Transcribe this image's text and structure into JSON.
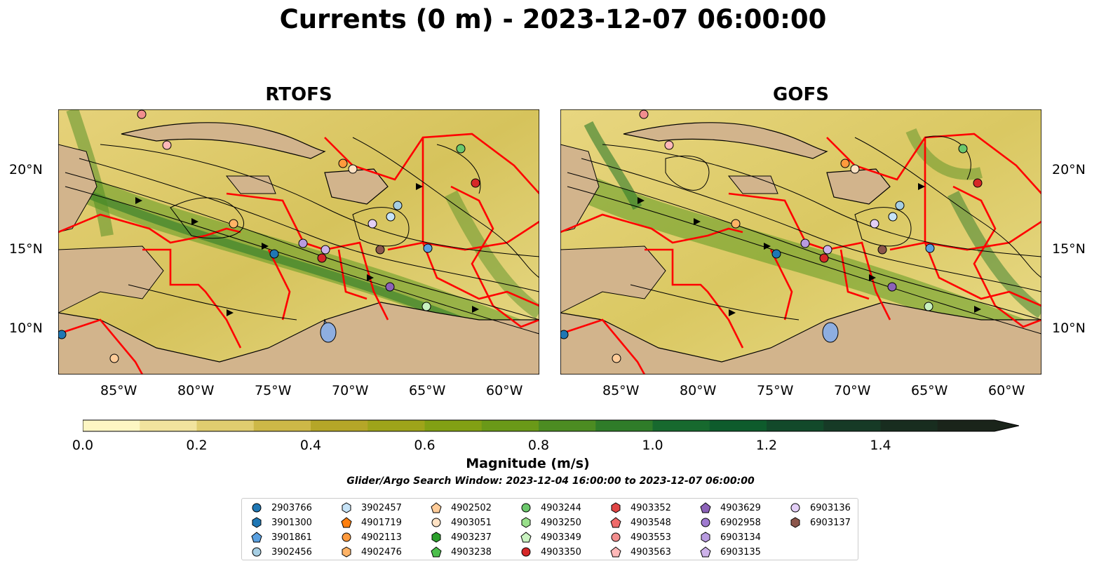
{
  "title": "Currents (0 m) - 2023-12-07 06:00:00",
  "panels": [
    {
      "title": "RTOFS"
    },
    {
      "title": "GOFS"
    }
  ],
  "axes": {
    "lat_ticks": [
      "20°N",
      "15°N",
      "10°N"
    ],
    "lon_ticks": [
      "85°W",
      "80°W",
      "75°W",
      "70°W",
      "65°W",
      "60°W"
    ]
  },
  "colorbar": {
    "label": "Magnitude (m/s)",
    "ticks": [
      "0.0",
      "0.2",
      "0.4",
      "0.6",
      "0.8",
      "1.0",
      "1.2",
      "1.4"
    ],
    "range": [
      0.0,
      1.6
    ],
    "colors": [
      "#fdf6c3",
      "#f1e39e",
      "#e0cd6f",
      "#cdb847",
      "#b5a628",
      "#9ea41a",
      "#82a014",
      "#6a9918",
      "#4c8c22",
      "#2f7c29",
      "#17692e",
      "#0e5b2c",
      "#12492a",
      "#163a26",
      "#182d1f",
      "#1a241a"
    ],
    "extend": "max"
  },
  "search_window": "Glider/Argo Search Window: 2023-12-04 16:00:00 to 2023-12-07 06:00:00",
  "legend": [
    {
      "id": "2903766",
      "marker": "circle",
      "color": "#1f77b4"
    },
    {
      "id": "3901300",
      "marker": "hexagon",
      "color": "#1f77b4"
    },
    {
      "id": "3901861",
      "marker": "pentagon",
      "color": "#5aa0e0"
    },
    {
      "id": "3902456",
      "marker": "circle",
      "color": "#a6cee3"
    },
    {
      "id": "3902457",
      "marker": "hexagon",
      "color": "#c6e3f7"
    },
    {
      "id": "4901719",
      "marker": "pentagon",
      "color": "#ff7f0e"
    },
    {
      "id": "4902113",
      "marker": "circle",
      "color": "#ff9a3d"
    },
    {
      "id": "4902476",
      "marker": "hexagon",
      "color": "#ffb366"
    },
    {
      "id": "4902502",
      "marker": "pentagon",
      "color": "#ffcc99"
    },
    {
      "id": "4903051",
      "marker": "circle",
      "color": "#ffe2c4"
    },
    {
      "id": "4903237",
      "marker": "hexagon",
      "color": "#2ca02c"
    },
    {
      "id": "4903238",
      "marker": "pentagon",
      "color": "#4cbf4c"
    },
    {
      "id": "4903244",
      "marker": "circle",
      "color": "#6cc86c"
    },
    {
      "id": "4903250",
      "marker": "hexagon",
      "color": "#98df8a"
    },
    {
      "id": "4903349",
      "marker": "pentagon",
      "color": "#c9f2c0"
    },
    {
      "id": "4903350",
      "marker": "circle",
      "color": "#d62728"
    },
    {
      "id": "4903352",
      "marker": "hexagon",
      "color": "#e04545"
    },
    {
      "id": "4903548",
      "marker": "pentagon",
      "color": "#ee6a6a"
    },
    {
      "id": "4903553",
      "marker": "circle",
      "color": "#f28e8e"
    },
    {
      "id": "4903563",
      "marker": "pentagon",
      "color": "#ffb8b8"
    },
    {
      "id": "4903629",
      "marker": "pentagon",
      "color": "#8c62b8"
    },
    {
      "id": "6902958",
      "marker": "circle",
      "color": "#9f7ad0"
    },
    {
      "id": "6903134",
      "marker": "hexagon",
      "color": "#b89be0"
    },
    {
      "id": "6903135",
      "marker": "pentagon",
      "color": "#cdb2ea"
    },
    {
      "id": "6903136",
      "marker": "circle",
      "color": "#e3cff7"
    },
    {
      "id": "6903137",
      "marker": "hexagon",
      "color": "#8c564b"
    }
  ],
  "colors": {
    "land": "#d2b48c",
    "eez_lines": "#ff0000",
    "lakes": "#8eaee0"
  }
}
